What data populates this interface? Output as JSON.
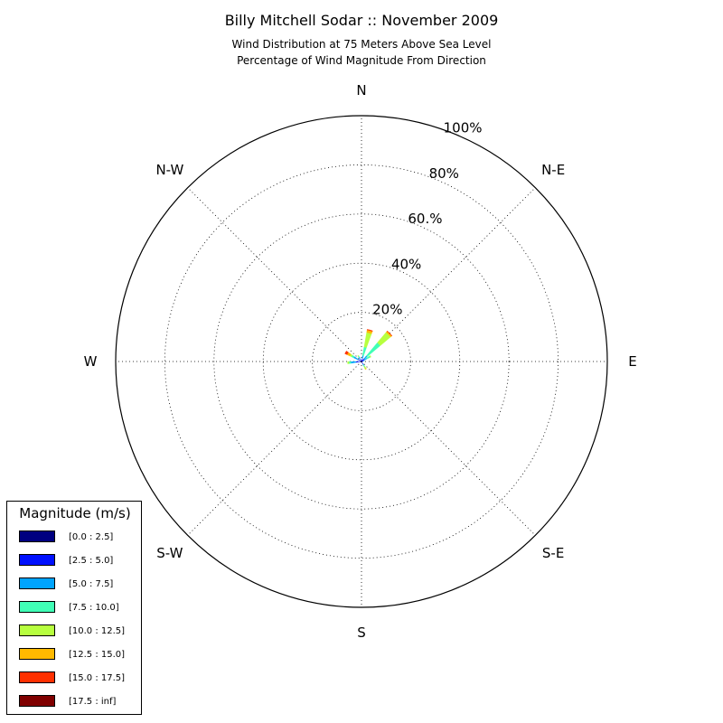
{
  "chart_data": {
    "type": "windrose",
    "title": "Billy Mitchell Sodar :: November 2009",
    "subtitle_lines": [
      "Wind Distribution at 75 Meters Above Sea Level",
      "Percentage of Wind Magnitude From Direction"
    ],
    "directions": [
      "N",
      "N-E",
      "E",
      "S-E",
      "S",
      "S-W",
      "W",
      "N-W"
    ],
    "radial_ticks": [
      "20%",
      "40%",
      "60.%",
      "80%",
      "100%"
    ],
    "radial_max": 100,
    "grid": true,
    "legend": {
      "title": "Magnitude (m/s)",
      "placement": "lower-left",
      "bins": [
        {
          "label": "[0.0 : 2.5]",
          "color": "#000080"
        },
        {
          "label": "[2.5 : 5.0]",
          "color": "#0010ff"
        },
        {
          "label": "[5.0 : 7.5]",
          "color": "#00a4ff"
        },
        {
          "label": "[7.5 : 10.0]",
          "color": "#40ffb6"
        },
        {
          "label": "[10.0 : 12.5]",
          "color": "#b7ff3f"
        },
        {
          "label": "[12.5 : 15.0]",
          "color": "#ffb900"
        },
        {
          "label": "[15.0 : 17.5]",
          "color": "#ff3000"
        },
        {
          "label": "[17.5 : inf]",
          "color": "#800000"
        }
      ]
    },
    "sectors": [
      {
        "direction_deg": 15,
        "values": [
          0.5,
          0.8,
          1.2,
          3.5,
          6.0,
          1.0,
          0.3,
          0.0
        ]
      },
      {
        "direction_deg": 45,
        "values": [
          0.5,
          1.0,
          1.5,
          7.0,
          5.5,
          0.6,
          0.2,
          0.0
        ]
      },
      {
        "direction_deg": 60,
        "values": [
          0.4,
          1.0,
          1.0,
          1.5,
          0.4,
          0.0,
          0.0,
          0.0
        ]
      },
      {
        "direction_deg": 75,
        "values": [
          0.3,
          0.5,
          0.3,
          0.2,
          0.0,
          0.0,
          0.0,
          0.0
        ]
      },
      {
        "direction_deg": 150,
        "values": [
          0.4,
          0.8,
          0.5,
          0.7,
          1.0,
          0.2,
          0.0,
          0.0
        ]
      },
      {
        "direction_deg": 265,
        "values": [
          0.8,
          1.5,
          2.0,
          0.8,
          0.6,
          0.0,
          0.0,
          0.0
        ]
      },
      {
        "direction_deg": 300,
        "values": [
          0.5,
          1.0,
          2.0,
          1.0,
          0.8,
          1.2,
          1.0,
          0.0
        ]
      },
      {
        "direction_deg": 330,
        "values": [
          0.4,
          0.8,
          0.8,
          0.5,
          0.3,
          0.0,
          0.0,
          0.0
        ]
      }
    ]
  }
}
